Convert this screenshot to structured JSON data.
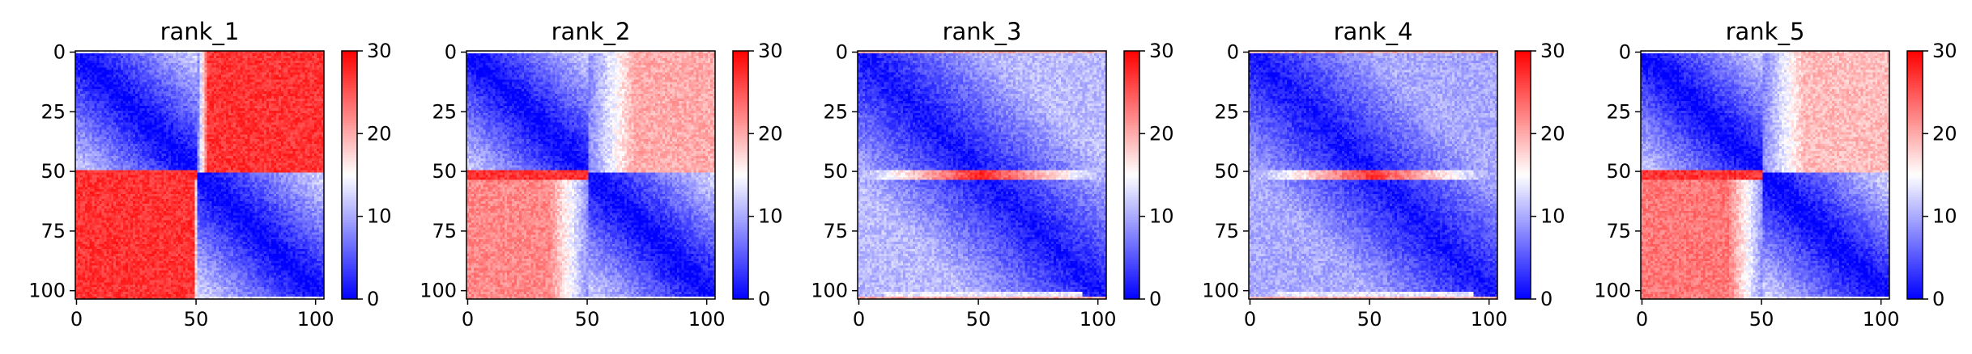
{
  "chart_data": [
    {
      "type": "heatmap",
      "title": "rank_1",
      "matrix_size": 104,
      "xlim": [
        0,
        103
      ],
      "ylim": [
        103,
        0
      ],
      "x_ticks": [
        0,
        50,
        100
      ],
      "y_ticks": [
        0,
        25,
        50,
        75,
        100
      ],
      "colorbar": {
        "min": 0,
        "max": 30,
        "ticks": [
          0,
          10,
          20,
          30
        ],
        "colormap": "bwr"
      },
      "pattern": {
        "breakpoint": 51,
        "upper_right_level": 27,
        "lower_left_level": 27,
        "transition_col": 55
      },
      "grid": false
    },
    {
      "type": "heatmap",
      "title": "rank_2",
      "matrix_size": 104,
      "xlim": [
        0,
        103
      ],
      "ylim": [
        103,
        0
      ],
      "x_ticks": [
        0,
        50,
        100
      ],
      "y_ticks": [
        0,
        25,
        50,
        75,
        100
      ],
      "colorbar": {
        "min": 0,
        "max": 30,
        "ticks": [
          0,
          10,
          20,
          30
        ],
        "colormap": "bwr"
      },
      "pattern": {
        "breakpoint": 51,
        "upper_right_level": 20,
        "lower_left_level": 22,
        "transition_col": 70
      },
      "grid": false
    },
    {
      "type": "heatmap",
      "title": "rank_3",
      "matrix_size": 104,
      "xlim": [
        0,
        103
      ],
      "ylim": [
        103,
        0
      ],
      "x_ticks": [
        0,
        50,
        100
      ],
      "y_ticks": [
        0,
        25,
        50,
        75,
        100
      ],
      "colorbar": {
        "min": 0,
        "max": 30,
        "ticks": [
          0,
          10,
          20,
          30
        ],
        "colormap": "bwr"
      },
      "pattern": {
        "breakpoint": 51,
        "upper_right_level": 11,
        "lower_left_level": 11,
        "band_level": 28
      },
      "grid": false
    },
    {
      "type": "heatmap",
      "title": "rank_4",
      "matrix_size": 104,
      "xlim": [
        0,
        103
      ],
      "ylim": [
        103,
        0
      ],
      "x_ticks": [
        0,
        50,
        100
      ],
      "y_ticks": [
        0,
        25,
        50,
        75,
        100
      ],
      "colorbar": {
        "min": 0,
        "max": 30,
        "ticks": [
          0,
          10,
          20,
          30
        ],
        "colormap": "bwr"
      },
      "pattern": {
        "breakpoint": 51,
        "upper_right_level": 10,
        "lower_left_level": 10,
        "band_level": 27
      },
      "grid": false
    },
    {
      "type": "heatmap",
      "title": "rank_5",
      "matrix_size": 104,
      "xlim": [
        0,
        103
      ],
      "ylim": [
        103,
        0
      ],
      "x_ticks": [
        0,
        50,
        100
      ],
      "y_ticks": [
        0,
        25,
        50,
        75,
        100
      ],
      "colorbar": {
        "min": 0,
        "max": 30,
        "ticks": [
          0,
          10,
          20,
          30
        ],
        "colormap": "bwr"
      },
      "pattern": {
        "breakpoint": 51,
        "upper_right_level": 19,
        "lower_left_level": 23,
        "transition_col": 68
      },
      "grid": false
    }
  ],
  "colors": {
    "low": "#0000ff",
    "mid": "#ffffff",
    "high": "#ff0000"
  }
}
